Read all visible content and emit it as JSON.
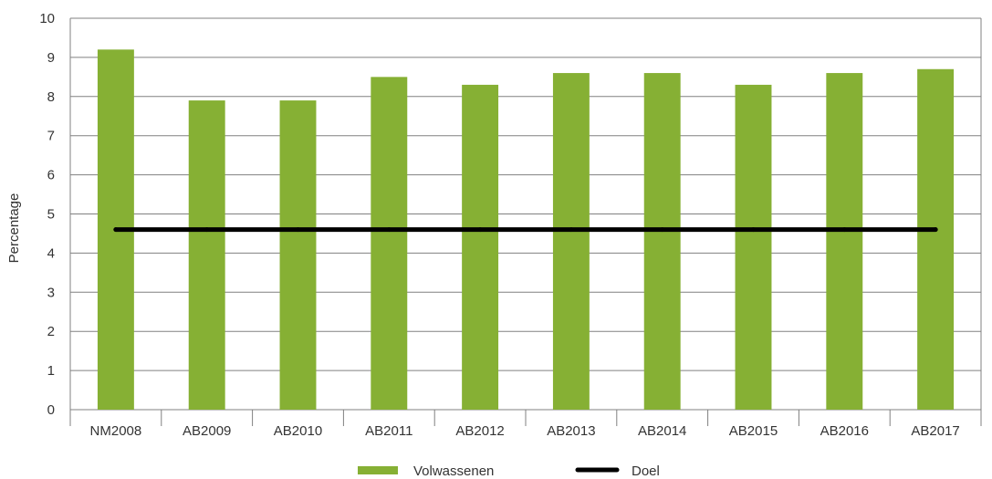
{
  "chart_data": {
    "type": "bar",
    "title": "",
    "xlabel": "",
    "ylabel": "Percentage",
    "ylim": [
      0,
      10
    ],
    "yticks": [
      0,
      1,
      2,
      3,
      4,
      5,
      6,
      7,
      8,
      9,
      10
    ],
    "categories": [
      "NM2008",
      "AB2009",
      "AB2010",
      "AB2011",
      "AB2012",
      "AB2013",
      "AB2014",
      "AB2015",
      "AB2016",
      "AB2017"
    ],
    "series": [
      {
        "name": "Volwassenen",
        "type": "bar",
        "color": "#86b034",
        "values": [
          9.2,
          7.9,
          7.9,
          8.5,
          8.3,
          8.6,
          8.6,
          8.3,
          8.6,
          8.7
        ]
      },
      {
        "name": "Doel",
        "type": "line",
        "color": "#000000",
        "values": [
          4.6,
          4.6,
          4.6,
          4.6,
          4.6,
          4.6,
          4.6,
          4.6,
          4.6,
          4.6
        ]
      }
    ],
    "grid": true,
    "legend": "bottom"
  }
}
